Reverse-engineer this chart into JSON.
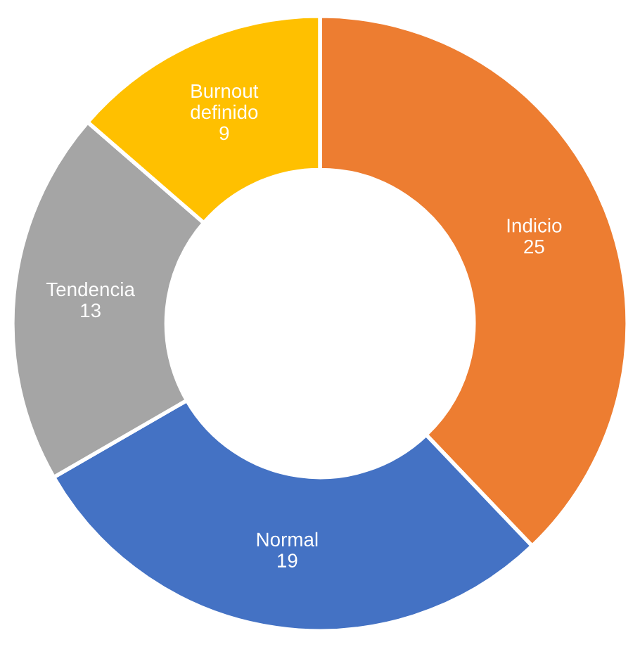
{
  "chart_data": {
    "type": "donut",
    "categories": [
      "Indicio",
      "Normal",
      "Tendencia",
      "Burnout definido"
    ],
    "values": [
      25,
      19,
      13,
      9
    ],
    "colors": [
      "#ed7d31",
      "#4472c4",
      "#a5a5a5",
      "#ffc000"
    ],
    "data_labels": true
  }
}
